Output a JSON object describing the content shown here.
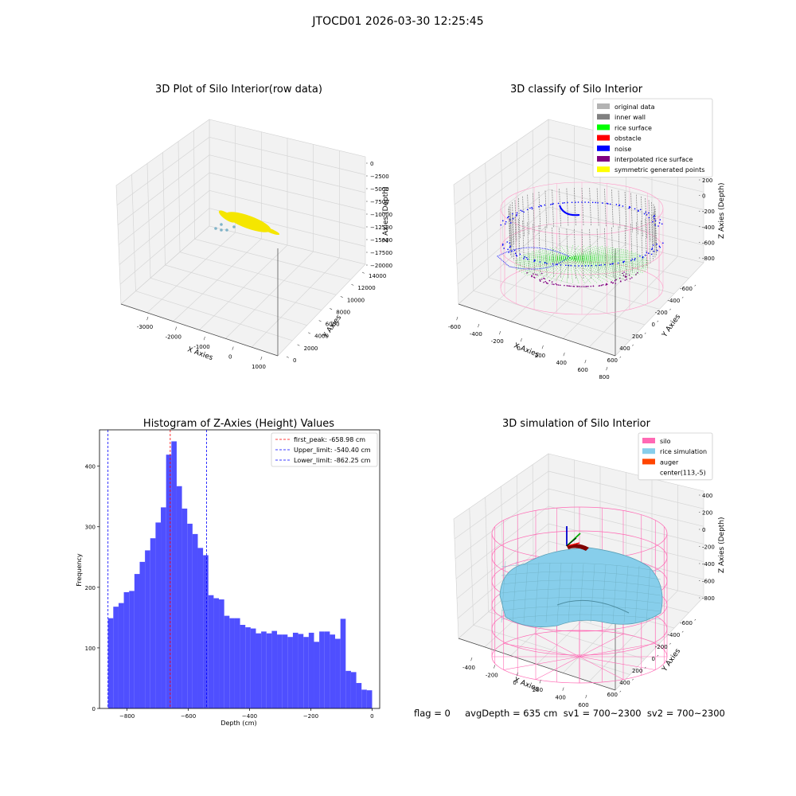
{
  "figure": {
    "suptitle": "JTOCD01 2026-03-30 12:25:45",
    "status_line": "flag = 0     avgDepth = 635 cm  sv1 = 700~2300  sv2 = 700~2300"
  },
  "chart_data": [
    {
      "type": "scatter",
      "projection": "3d",
      "title": "3D Plot of Silo Interior(row data)",
      "xlabel": "X Axies",
      "ylabel": "Y Axies",
      "zlabel": "Z Axies (Depth)",
      "xticks": [
        "-3000",
        "-2000",
        "-1000",
        "0",
        "1000"
      ],
      "yticks": [
        "0",
        "2000",
        "4000",
        "6000",
        "8000",
        "10000",
        "12000",
        "14000"
      ],
      "zticks": [
        "0",
        "−2500",
        "−5000",
        "−7500",
        "−10000",
        "−12500",
        "−15000",
        "−17500",
        "−20000"
      ],
      "grid": true,
      "series": [
        {
          "color": "#f5e600",
          "shape": "elongated cloud"
        },
        {
          "color": "#7fb3c8",
          "shape": "few scattered points"
        }
      ]
    },
    {
      "type": "scatter",
      "projection": "3d",
      "title": "3D classify of Silo Interior",
      "xlabel": "X Axies",
      "ylabel": "Y Axies",
      "zlabel": "Z Axies (Depth)",
      "xticks": [
        "-600",
        "-400",
        "-200",
        "0",
        "200",
        "400",
        "600",
        "800"
      ],
      "yticks": [
        "-600",
        "-400",
        "-200",
        "0",
        "200",
        "400",
        "600"
      ],
      "zticks": [
        "200",
        "0",
        "-200",
        "-400",
        "-600",
        "-800"
      ],
      "legend_position": "top-right",
      "legend": [
        {
          "label": "original data",
          "color": "#b3b3b3"
        },
        {
          "label": "inner wall",
          "color": "#808080"
        },
        {
          "label": "rice surface",
          "color": "#00ff00"
        },
        {
          "label": "obstacle",
          "color": "#ff0000"
        },
        {
          "label": "noise",
          "color": "#0000ff"
        },
        {
          "label": "interpolated rice surface",
          "color": "#800080"
        },
        {
          "label": "symmetric generated points",
          "color": "#ffff00"
        }
      ],
      "wire_color": "#ff9ac8",
      "grid": true
    },
    {
      "type": "bar",
      "title": "Histogram of Z-Axies (Height) Values",
      "xlabel": "Depth (cm)",
      "ylabel": "Frequency",
      "xlim": [
        -890,
        25
      ],
      "ylim": [
        0,
        460
      ],
      "xticks": [
        -800,
        -600,
        -400,
        -200,
        0
      ],
      "yticks": [
        0,
        100,
        200,
        300,
        400
      ],
      "bar_color": "#4b4bff",
      "bin_start": -862.25,
      "bin_width": 17.25,
      "values": [
        149,
        168,
        174,
        192,
        194,
        222,
        242,
        261,
        281,
        307,
        332,
        419,
        441,
        367,
        330,
        305,
        288,
        265,
        253,
        187,
        182,
        180,
        153,
        149,
        149,
        138,
        134,
        132,
        124,
        127,
        124,
        128,
        122,
        122,
        118,
        125,
        123,
        118,
        125,
        110,
        127,
        127,
        122,
        115,
        148,
        62,
        60,
        42,
        31,
        30
      ],
      "vlines": [
        {
          "label": "first_peak: -658.98 cm",
          "x": -658.98,
          "color": "#ff0000"
        },
        {
          "label": "Upper_limit: -540.40 cm",
          "x": -540.4,
          "color": "#0000ff"
        },
        {
          "label": "Lower_limit: -862.25 cm",
          "x": -862.25,
          "color": "#0000ff"
        }
      ],
      "legend_position": "top-right"
    },
    {
      "type": "surface",
      "projection": "3d",
      "title": "3D simulation of Silo Interior",
      "xlabel": "X Axies",
      "ylabel": "Y Axies",
      "zlabel": "Z Axies (Depth)",
      "xticks": [
        "-400",
        "-200",
        "0",
        "200",
        "400",
        "600"
      ],
      "yticks": [
        "-600",
        "-400",
        "-200",
        "0",
        "200",
        "400",
        "600"
      ],
      "zticks": [
        "400",
        "200",
        "0",
        "-200",
        "-400",
        "-600",
        "-800"
      ],
      "legend_position": "top-right",
      "legend": [
        {
          "label": "silo",
          "color": "#ff69b4"
        },
        {
          "label": "rice simulation",
          "color": "#87ceeb"
        },
        {
          "label": "auger",
          "color": "#ff4500"
        },
        {
          "label": "center(113,-5)",
          "color": "#ffffff"
        }
      ],
      "grid": true
    }
  ]
}
